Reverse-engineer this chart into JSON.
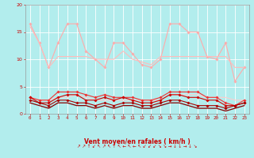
{
  "bg_color": "#b2eded",
  "grid_color": "#ffffff",
  "xlabel": "Vent moyen/en rafales ( km/h )",
  "xlabel_color": "#cc0000",
  "tick_color": "#cc0000",
  "ylim": [
    0,
    20
  ],
  "xlim": [
    -0.5,
    23.5
  ],
  "yticks": [
    0,
    5,
    10,
    15,
    20
  ],
  "xticks": [
    0,
    1,
    2,
    3,
    4,
    5,
    6,
    7,
    8,
    9,
    10,
    11,
    12,
    13,
    14,
    15,
    16,
    17,
    18,
    19,
    20,
    21,
    22,
    23
  ],
  "lines": [
    {
      "color": "#ffaaaa",
      "lw": 0.8,
      "marker": "D",
      "ms": 1.8,
      "data": [
        16.5,
        13.0,
        8.5,
        13.0,
        16.5,
        16.5,
        11.5,
        10.0,
        8.5,
        13.0,
        13.0,
        11.0,
        9.0,
        8.5,
        10.0,
        16.5,
        16.5,
        15.0,
        15.0,
        10.5,
        10.0,
        13.0,
        6.0,
        8.5
      ]
    },
    {
      "color": "#ffbbbb",
      "lw": 0.8,
      "marker": null,
      "ms": 0,
      "data": [
        16.0,
        13.0,
        8.5,
        10.5,
        10.5,
        10.5,
        10.5,
        10.0,
        10.0,
        10.0,
        11.5,
        10.0,
        9.5,
        9.0,
        10.5,
        10.5,
        10.5,
        10.5,
        10.5,
        10.5,
        10.5,
        10.5,
        8.5,
        8.5
      ]
    },
    {
      "color": "#ffcccc",
      "lw": 0.8,
      "marker": null,
      "ms": 0,
      "data": [
        3.0,
        2.5,
        2.5,
        3.0,
        3.0,
        3.5,
        3.0,
        2.5,
        2.5,
        2.5,
        2.5,
        2.5,
        2.5,
        2.5,
        2.5,
        3.5,
        3.5,
        3.5,
        3.5,
        3.0,
        3.0,
        3.0,
        2.5,
        2.5
      ]
    },
    {
      "color": "#ee3333",
      "lw": 0.8,
      "marker": "D",
      "ms": 1.8,
      "data": [
        3.0,
        2.5,
        2.5,
        4.0,
        4.0,
        4.0,
        3.5,
        3.0,
        3.5,
        3.0,
        3.0,
        3.0,
        2.5,
        2.5,
        3.0,
        4.0,
        4.0,
        4.0,
        4.0,
        3.0,
        3.0,
        2.0,
        1.5,
        2.5
      ]
    },
    {
      "color": "#cc0000",
      "lw": 0.8,
      "marker": "D",
      "ms": 1.8,
      "data": [
        3.0,
        2.0,
        2.0,
        3.0,
        3.5,
        3.5,
        2.5,
        2.5,
        3.0,
        2.5,
        3.0,
        2.5,
        2.0,
        2.0,
        2.5,
        3.5,
        3.5,
        3.0,
        3.0,
        2.5,
        2.5,
        1.5,
        1.5,
        2.0
      ]
    },
    {
      "color": "#aa0000",
      "lw": 0.8,
      "marker": "D",
      "ms": 1.8,
      "data": [
        2.5,
        2.0,
        1.5,
        2.5,
        2.5,
        2.0,
        2.0,
        1.5,
        2.0,
        1.5,
        2.0,
        2.0,
        1.5,
        1.5,
        2.0,
        2.5,
        2.5,
        2.0,
        1.5,
        1.5,
        1.5,
        1.0,
        1.5,
        2.0
      ]
    },
    {
      "color": "#880000",
      "lw": 0.9,
      "marker": null,
      "ms": 0,
      "data": [
        2.0,
        1.5,
        1.0,
        2.0,
        2.0,
        1.5,
        1.5,
        1.0,
        1.5,
        1.0,
        1.5,
        1.5,
        1.0,
        1.0,
        1.5,
        2.0,
        2.0,
        1.5,
        1.0,
        1.0,
        1.0,
        0.5,
        1.0,
        1.5
      ]
    }
  ],
  "arrows": [
    "↗",
    "↗",
    "↑",
    "↙",
    "↖",
    "↗",
    "↖",
    "↑",
    "↖",
    "←",
    "↖",
    "←",
    "↖",
    "↙",
    "↙",
    "↙",
    "↘",
    "↘",
    "→",
    "↓",
    "↓",
    "→",
    "↓",
    "↘"
  ],
  "figsize": [
    3.2,
    2.0
  ],
  "dpi": 100
}
